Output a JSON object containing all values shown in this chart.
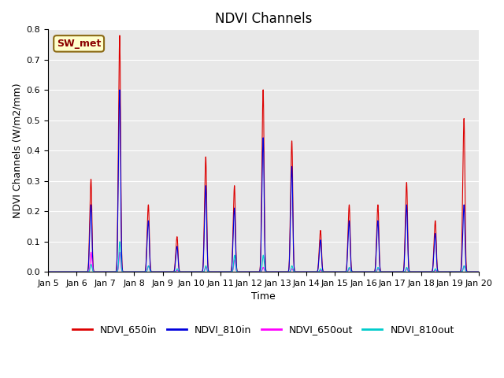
{
  "title": "NDVI Channels",
  "ylabel": "NDVI Channels (W/m2/mm)",
  "xlabel": "Time",
  "annotation": "SW_met",
  "ylim": [
    0.0,
    0.8
  ],
  "series_colors": {
    "NDVI_650in": "#dd0000",
    "NDVI_810in": "#0000dd",
    "NDVI_650out": "#ff00ff",
    "NDVI_810out": "#00cccc"
  },
  "legend_labels": [
    "NDVI_650in",
    "NDVI_810in",
    "NDVI_650out",
    "NDVI_810out"
  ],
  "background_color": "#e8e8e8",
  "tick_labels": [
    "Jan 5",
    "Jan 6",
    "Jan 7",
    "Jan 8",
    "Jan 9",
    "Jan 10",
    "Jan 11",
    "Jan 12",
    "Jan 13",
    "Jan 14",
    "Jan 15",
    "Jan 16",
    "Jan 17",
    "Jan 18",
    "Jan 19",
    "Jan 20"
  ],
  "days": [
    5,
    6,
    7,
    8,
    9,
    10,
    11,
    12,
    13,
    14,
    15,
    16,
    17,
    18,
    19,
    20
  ],
  "peaks_650in": [
    0.0,
    0.29,
    0.74,
    0.21,
    0.11,
    0.36,
    0.27,
    0.57,
    0.41,
    0.13,
    0.21,
    0.21,
    0.28,
    0.16,
    0.48,
    0.0
  ],
  "peaks_810in": [
    0.0,
    0.21,
    0.57,
    0.16,
    0.08,
    0.27,
    0.2,
    0.42,
    0.33,
    0.1,
    0.16,
    0.16,
    0.21,
    0.12,
    0.21,
    0.0
  ],
  "peaks_650out": [
    0.0,
    0.065,
    0.065,
    0.02,
    0.005,
    0.015,
    0.04,
    0.015,
    0.01,
    0.005,
    0.01,
    0.01,
    0.01,
    0.005,
    0.02,
    0.0
  ],
  "peaks_810out": [
    0.0,
    0.025,
    0.1,
    0.02,
    0.01,
    0.02,
    0.055,
    0.055,
    0.02,
    0.01,
    0.015,
    0.015,
    0.015,
    0.01,
    0.02,
    0.0
  ],
  "title_fontsize": 12,
  "axis_label_fontsize": 9,
  "tick_fontsize": 8
}
